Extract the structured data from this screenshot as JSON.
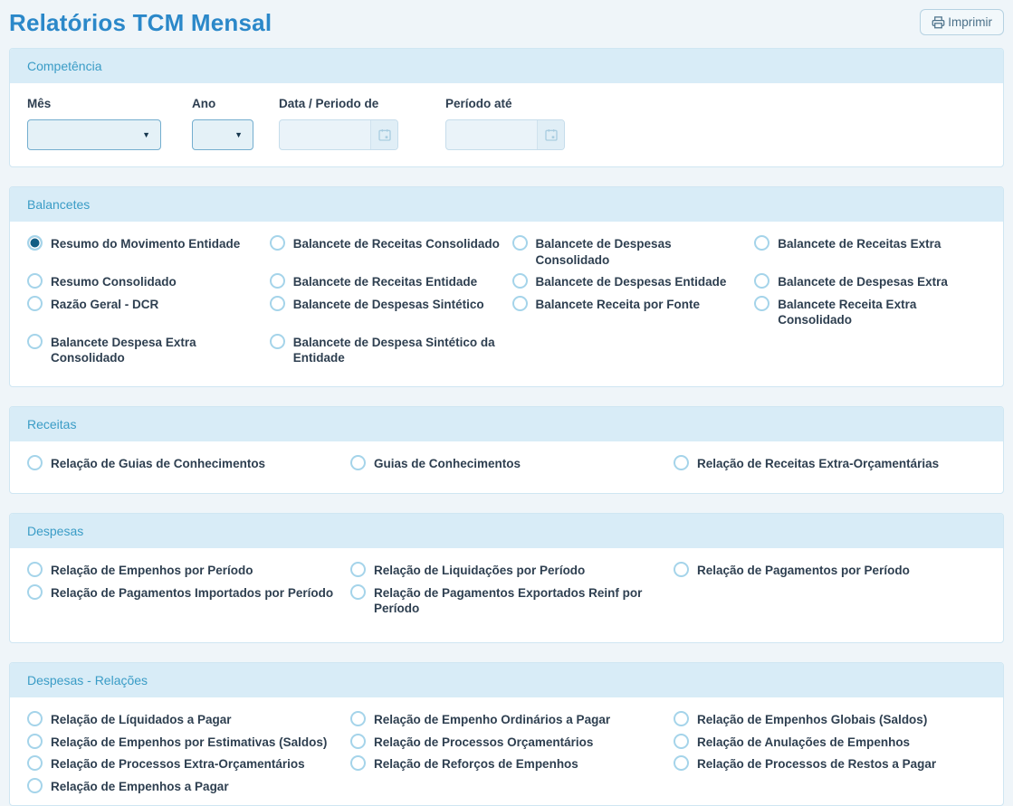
{
  "page_title": "Relatórios TCM Mensal",
  "toolbar": {
    "print_label": "Imprimir"
  },
  "competencia": {
    "title": "Competência",
    "mes_label": "Mês",
    "mes_value": "",
    "ano_label": "Ano",
    "ano_value": "",
    "data_de_label": "Data / Periodo de",
    "data_de_value": "",
    "periodo_ate_label": "Período até",
    "periodo_ate_value": ""
  },
  "sections": [
    {
      "title": "Balancetes",
      "columns": 4,
      "options": [
        {
          "label": "Resumo do Movimento Entidade",
          "checked": true
        },
        {
          "label": "Balancete de Receitas Consolidado",
          "checked": false
        },
        {
          "label": "Balancete de Despesas Consolidado",
          "checked": false
        },
        {
          "label": "Balancete de Receitas Extra",
          "checked": false
        },
        {
          "label": "Resumo Consolidado",
          "checked": false
        },
        {
          "label": "Balancete de Receitas Entidade",
          "checked": false
        },
        {
          "label": "Balancete de Despesas Entidade",
          "checked": false
        },
        {
          "label": "Balancete de Despesas Extra",
          "checked": false
        },
        {
          "label": "Razão Geral - DCR",
          "checked": false
        },
        {
          "label": "Balancete de Despesas Sintético",
          "checked": false
        },
        {
          "label": "Balancete Receita por Fonte",
          "checked": false
        },
        {
          "label": "Balancete Receita Extra Consolidado",
          "checked": false
        },
        {
          "label": "Balancete Despesa Extra Consolidado",
          "checked": false
        },
        {
          "label": "Balancete de Despesa Sintético da Entidade",
          "checked": false
        }
      ]
    },
    {
      "title": "Receitas",
      "columns": 3,
      "options": [
        {
          "label": "Relação de Guias de Conhecimentos",
          "checked": false
        },
        {
          "label": "Guias de Conhecimentos",
          "checked": false
        },
        {
          "label": "Relação de Receitas Extra-Orçamentárias",
          "checked": false
        }
      ]
    },
    {
      "title": "Despesas",
      "columns": 3,
      "options": [
        {
          "label": "Relação de Empenhos por Período",
          "checked": false
        },
        {
          "label": "Relação de Liquidações por Período",
          "checked": false
        },
        {
          "label": "Relação de Pagamentos por Período",
          "checked": false
        },
        {
          "label": "Relação de Pagamentos Importados por Período",
          "checked": false
        },
        {
          "label": "Relação de Pagamentos Exportados Reinf por Período",
          "checked": false
        }
      ]
    },
    {
      "title": "Despesas - Relações",
      "columns": 3,
      "options": [
        {
          "label": "Relação de Líquidados a Pagar",
          "checked": false
        },
        {
          "label": "Relação de Empenho Ordinários a Pagar",
          "checked": false
        },
        {
          "label": "Relação de Empenhos Globais (Saldos)",
          "checked": false
        },
        {
          "label": "Relação de Empenhos por Estimativas (Saldos)",
          "checked": false
        },
        {
          "label": "Relação de Processos Orçamentários",
          "checked": false
        },
        {
          "label": "Relação de Anulações de Empenhos",
          "checked": false
        },
        {
          "label": "Relação de Processos Extra-Orçamentários",
          "checked": false
        },
        {
          "label": "Relação de Reforços de Empenhos",
          "checked": false
        },
        {
          "label": "Relação de Processos de Restos a Pagar",
          "checked": false
        },
        {
          "label": "Relação de Empenhos a Pagar",
          "checked": false
        }
      ]
    }
  ],
  "colors": {
    "title_blue": "#2b88c9",
    "section_header_bg": "#d8ecf7",
    "section_header_text": "#3a9cc6",
    "radio_selected": "#135e84",
    "radio_border": "#a5d4ea",
    "label_text": "#2e3f50"
  }
}
